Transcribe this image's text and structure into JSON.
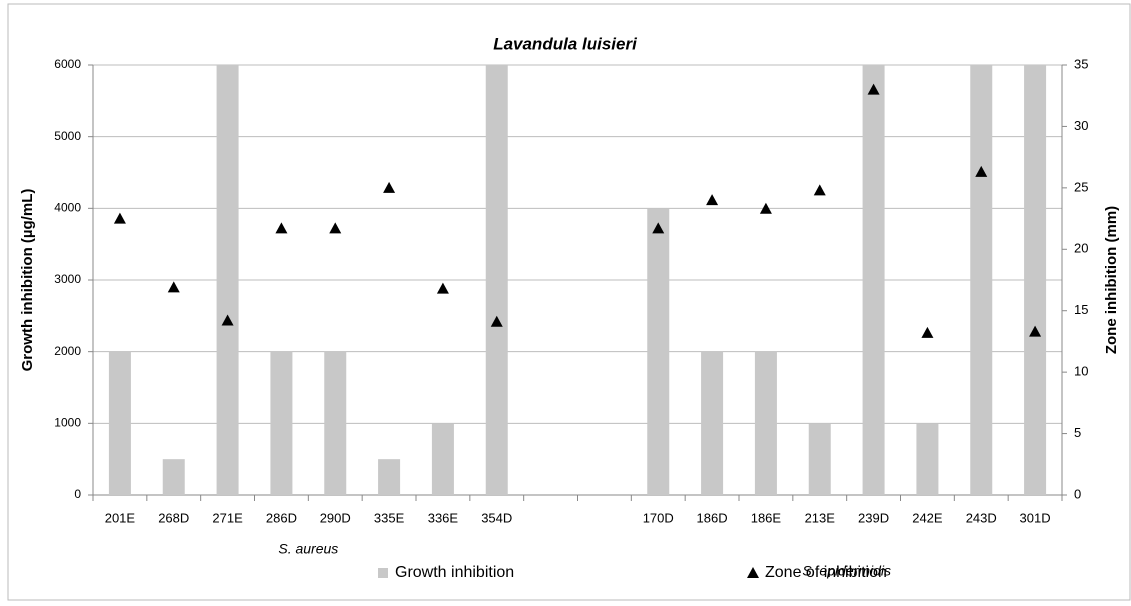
{
  "chart_data": {
    "type": "bar",
    "title": "Lavandula luisieri",
    "ylabel": "Growth inhibition (µg/mL)",
    "y2label": "Zone inhibition (mm)",
    "categories": [
      "201E",
      "268D",
      "271E",
      "286D",
      "290D",
      "335E",
      "336E",
      "354D",
      null,
      null,
      "170D",
      "186D",
      "186E",
      "213E",
      "239D",
      "242E",
      "243D",
      "301D"
    ],
    "group_labels": [
      "S. aureus",
      "S. epidermidis"
    ],
    "series": [
      {
        "name": "Growth inhibition",
        "type": "bar",
        "color": "#c8c8c8",
        "values": [
          2000,
          500,
          6000,
          2000,
          2000,
          500,
          1000,
          6000,
          null,
          null,
          4000,
          2000,
          2000,
          1000,
          6000,
          1000,
          6000,
          6000
        ]
      },
      {
        "name": "Zone of inhibition",
        "type": "scatter",
        "axis": "y2",
        "color": "#000000",
        "values": [
          22.5,
          16.9,
          14.2,
          21.7,
          21.7,
          25,
          16.8,
          14.1,
          null,
          null,
          21.7,
          24,
          23.3,
          24.8,
          33,
          13.2,
          26.3,
          13.3
        ]
      }
    ],
    "ylim": [
      0,
      6000
    ],
    "yticks": [
      0,
      1000,
      2000,
      3000,
      4000,
      5000,
      6000
    ],
    "y2lim": [
      0,
      35
    ],
    "y2ticks": [
      0,
      5,
      10,
      15,
      20,
      25,
      30,
      35
    ],
    "grid": true
  }
}
